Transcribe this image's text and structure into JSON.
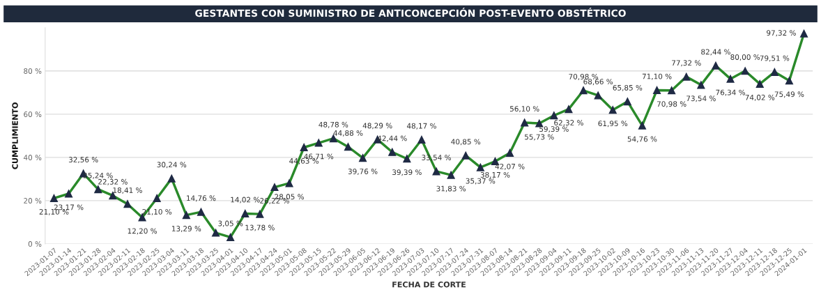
{
  "chart_data": {
    "type": "line",
    "title": "GESTANTES CON SUMINISTRO DE ANTICONCEPCIÓN POST-EVENTO OBSTÉTRICO",
    "xlabel": "FECHA DE CORTE",
    "ylabel": "CUMPLIMIENTO",
    "categories": [
      "2023-01-07",
      "2023-01-14",
      "2023-01-21",
      "2023-01-28",
      "2023-02-04",
      "2023-02-11",
      "2023-02-18",
      "2023-02-25",
      "2023-03-04",
      "2023-03-11",
      "2023-03-18",
      "2023-03-25",
      "2023-04-01",
      "2023-04-10",
      "2023-04-17",
      "2023-04-24",
      "2023-05-01",
      "2023-05-08",
      "2023-05-15",
      "2023-05-22",
      "2023-05-29",
      "2023-06-05",
      "2023-06-12",
      "2023-06-19",
      "2023-06-26",
      "2023-07-03",
      "2023-07-10",
      "2023-07-17",
      "2023-07-24",
      "2023-07-31",
      "2023-08-07",
      "2023-08-14",
      "2023-08-21",
      "2023-08-28",
      "2023-09-04",
      "2023-09-11",
      "2023-09-18",
      "2023-09-25",
      "2023-10-02",
      "2023-10-09",
      "2023-10-16",
      "2023-10-23",
      "2023-10-30",
      "2023-11-06",
      "2023-11-13",
      "2023-11-20",
      "2023-11-27",
      "2023-12-04",
      "2023-12-11",
      "2023-12-18",
      "2023-12-25",
      "2024-01-01"
    ],
    "values": [
      21.1,
      23.17,
      32.56,
      25.24,
      22.32,
      18.41,
      12.2,
      21.1,
      30.24,
      13.29,
      14.76,
      5.1,
      3.05,
      14.02,
      13.78,
      26.22,
      28.05,
      44.63,
      46.71,
      48.78,
      44.88,
      39.76,
      48.29,
      42.44,
      39.39,
      48.17,
      33.54,
      31.83,
      40.85,
      35.37,
      38.17,
      42.07,
      56.1,
      55.73,
      59.39,
      62.32,
      70.98,
      68.66,
      61.95,
      65.85,
      54.76,
      71.1,
      70.98,
      77.32,
      73.54,
      82.44,
      76.34,
      80.0,
      74.02,
      79.51,
      75.49,
      97.32
    ],
    "value_labels": [
      "21,10 %",
      "23,17 %",
      "32,56 %",
      "25,24 %",
      "22,32 %",
      "18,41 %",
      "12,20 %",
      "21,10 %",
      "30,24 %",
      "13,29 %",
      "14,76 %",
      null,
      "3,05 %",
      "14,02 %",
      "13,78 %",
      "26,22 %",
      "28,05 %",
      "44,63 %",
      "46,71 %",
      "48,78 %",
      "44,88 %",
      "39,76 %",
      "48,29 %",
      "42,44 %",
      "39,39 %",
      "48,17 %",
      "33,54 %",
      "31,83 %",
      "40,85 %",
      "35,37 %",
      "38,17 %",
      "42,07 %",
      "56,10 %",
      "55,73 %",
      "59,39 %",
      "62,32 %",
      "70,98 %",
      "68,66 %",
      "61,95 %",
      "65,85 %",
      "54,76 %",
      "71,10 %",
      "70,98 %",
      "77,32 %",
      "73,54 %",
      "82,44 %",
      "76,34 %",
      "80,00 %",
      "74,02 %",
      "79,51 %",
      "75,49 %",
      "97,32 %"
    ],
    "color": "#2a8a2a",
    "marker": "triangle",
    "line_style": "solid",
    "ylim": [
      0,
      100
    ],
    "yticks": [
      {
        "value": 0,
        "label": "0 %"
      },
      {
        "value": 20,
        "label": "20 %"
      },
      {
        "value": 40,
        "label": "40 %"
      },
      {
        "value": 60,
        "label": "60 %"
      },
      {
        "value": 80,
        "label": "80 %"
      }
    ],
    "grid": "y",
    "legend": false
  }
}
